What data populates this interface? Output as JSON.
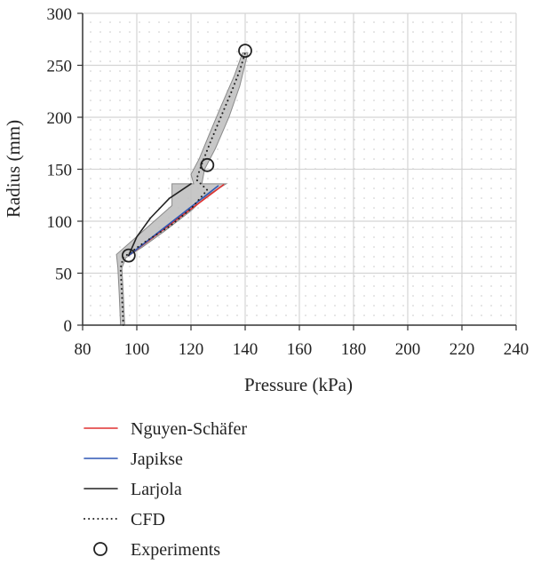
{
  "chart_data": {
    "type": "line",
    "xlabel": "Pressure (kPa)",
    "ylabel": "Radius (mm)",
    "xlim": [
      80,
      240
    ],
    "ylim": [
      0,
      300
    ],
    "xticks": [
      80,
      100,
      120,
      140,
      160,
      180,
      200,
      220,
      240
    ],
    "yticks": [
      0,
      50,
      100,
      150,
      200,
      250,
      300
    ],
    "grid": true,
    "legend_position": "bottom",
    "cfd_band": {
      "color": "#bdbdbd",
      "upper": [
        [
          95.5,
          0
        ],
        [
          95,
          30
        ],
        [
          94.5,
          55
        ],
        [
          96,
          65
        ],
        [
          102,
          75
        ],
        [
          110,
          90
        ],
        [
          120,
          110
        ],
        [
          126,
          125
        ],
        [
          133,
          136
        ],
        [
          124,
          136
        ],
        [
          125,
          150
        ],
        [
          129,
          170
        ],
        [
          134,
          200
        ],
        [
          138,
          230
        ],
        [
          141,
          262
        ]
      ],
      "lower": [
        [
          94,
          0
        ],
        [
          93.5,
          30
        ],
        [
          93,
          55
        ],
        [
          92.5,
          68
        ],
        [
          113,
          115
        ],
        [
          113,
          136
        ],
        [
          121,
          136
        ],
        [
          120,
          145
        ],
        [
          123,
          160
        ],
        [
          127,
          185
        ],
        [
          131,
          210
        ],
        [
          136,
          240
        ],
        [
          139,
          262
        ]
      ]
    },
    "series": [
      {
        "name": "Nguyen-Schäfer",
        "color": "#e03030",
        "style": "solid",
        "x": [
          97,
          132
        ],
        "y": [
          67,
          135
        ]
      },
      {
        "name": "Japikse",
        "color": "#2f57b5",
        "style": "solid",
        "x": [
          97,
          130
        ],
        "y": [
          67,
          134
        ]
      },
      {
        "name": "Larjola",
        "color": "#222222",
        "style": "solid",
        "x": [
          97,
          100,
          105,
          112,
          120
        ],
        "y": [
          67,
          85,
          103,
          122,
          136
        ]
      },
      {
        "name": "CFD",
        "color": "#222222",
        "style": "dotted",
        "x": [
          95,
          94.5,
          94,
          95,
          103,
          112,
          120,
          126,
          122,
          124,
          127,
          131,
          135,
          138,
          140
        ],
        "y": [
          0,
          30,
          55,
          65,
          80,
          95,
          112,
          130,
          140,
          155,
          175,
          200,
          225,
          245,
          262
        ]
      }
    ],
    "experiments": {
      "name": "Experiments",
      "x": [
        97,
        126,
        140
      ],
      "y": [
        67,
        154,
        264
      ]
    }
  }
}
